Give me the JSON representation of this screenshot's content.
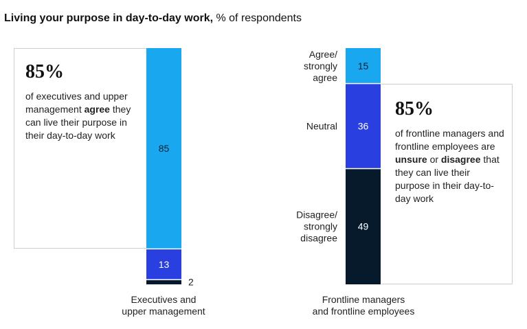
{
  "title": {
    "bold": "Living your purpose in day-to-day work,",
    "rest": " % of respondents"
  },
  "callouts": {
    "left": {
      "big": "85%",
      "pre": "of executives and upper management ",
      "emph": "agree",
      "post": " they can live their purpose in their day-to-day work"
    },
    "right": {
      "big": "85%",
      "pre": "of frontline managers and frontline employees are ",
      "emph1": "unsure",
      "mid": " or ",
      "emph2": "disagree",
      "post": " that they can live their purpose in their day-to-day work"
    }
  },
  "colors": {
    "agree": "#19a7f0",
    "neutral": "#2a3fe0",
    "disagree": "#061a2c"
  },
  "chart_data": {
    "type": "bar",
    "stacked": true,
    "ylim": [
      0,
      100
    ],
    "categories": [
      [
        "Executives and",
        "upper management"
      ],
      [
        "Frontline managers",
        "and frontline employees"
      ]
    ],
    "series": [
      {
        "name": [
          "Agree/",
          "strongly",
          "agree"
        ],
        "key": "agree",
        "values": [
          85,
          15
        ]
      },
      {
        "name": [
          "Neutral"
        ],
        "key": "neutral",
        "values": [
          13,
          36
        ]
      },
      {
        "name": [
          "Disagree/",
          "strongly",
          "disagree"
        ],
        "key": "disagree",
        "values": [
          2,
          49
        ]
      }
    ]
  }
}
